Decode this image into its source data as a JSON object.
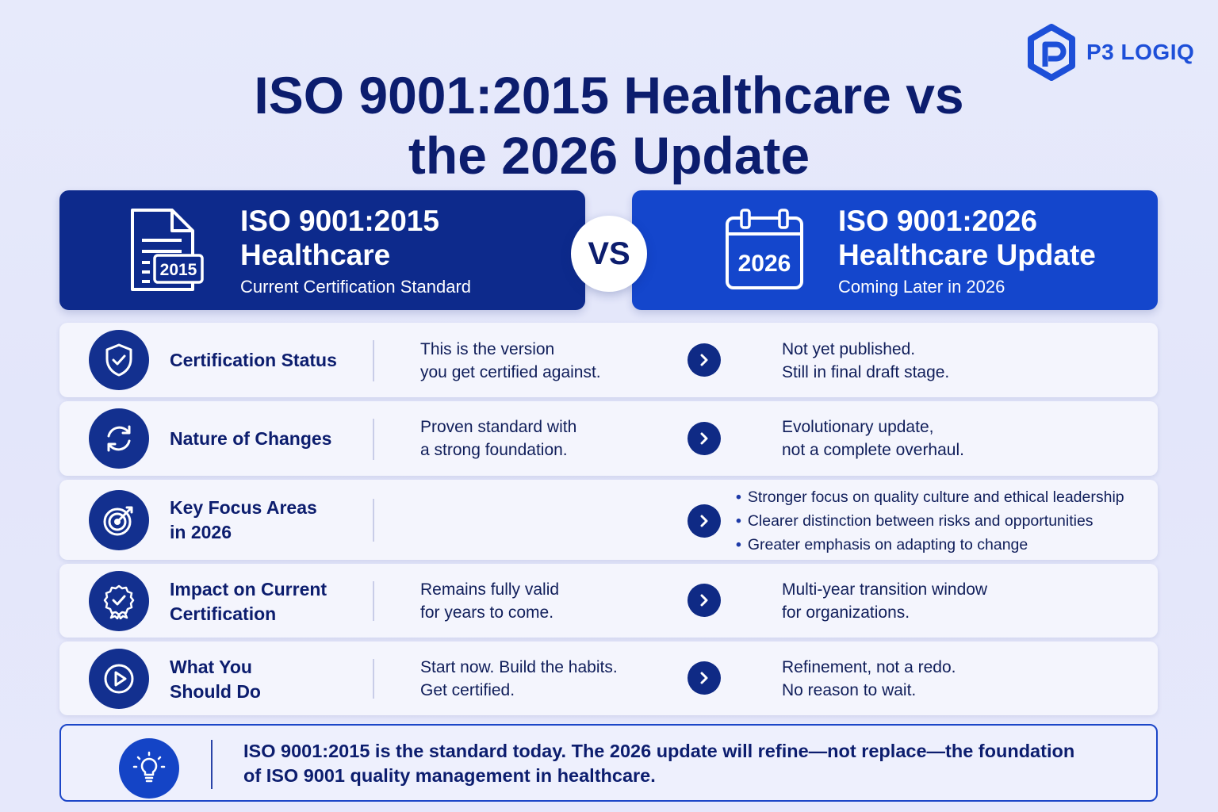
{
  "brand": {
    "name": "P3 LOGIQ"
  },
  "title": {
    "line1": "ISO 9001:2015 Healthcare vs",
    "line2": "the 2026 Update"
  },
  "left_header": {
    "title_line1": "ISO 9001:2015",
    "title_line2": "Healthcare",
    "subtitle": "Current Certification Standard",
    "icon_label": "2015"
  },
  "right_header": {
    "title_line1": "ISO 9001:2026",
    "title_line2": "Healthcare Update",
    "subtitle": "Coming Later in 2026",
    "icon_label": "2026"
  },
  "vs_label": "VS",
  "rows": [
    {
      "label_line1": "Certification Status",
      "label_line2": "",
      "icon": "shield-check-icon",
      "left_line1": "This is the version",
      "left_line2": "you get certified against.",
      "right_line1": "Not yet published.",
      "right_line2": "Still in final draft stage."
    },
    {
      "label_line1": "Nature of Changes",
      "label_line2": "",
      "icon": "refresh-icon",
      "left_line1": "Proven standard with",
      "left_line2": "a strong foundation.",
      "right_line1": "Evolutionary update,",
      "right_line2": "not a complete overhaul."
    },
    {
      "label_line1": "Key Focus Areas",
      "label_line2": "in 2026",
      "icon": "target-icon",
      "bullets": [
        "Stronger focus on quality culture and ethical leadership",
        "Clearer distinction between risks and opportunities",
        "Greater emphasis on adapting to change"
      ]
    },
    {
      "label_line1": "Impact on Current",
      "label_line2": "Certification",
      "icon": "award-badge-icon",
      "left_line1": "Remains fully valid",
      "left_line2": "for years to come.",
      "right_line1": "Multi-year transition window",
      "right_line2": "for organizations."
    },
    {
      "label_line1": "What You",
      "label_line2": "Should Do",
      "icon": "play-icon",
      "left_line1": "Start now. Build the habits.",
      "left_line2": "Get certified.",
      "right_line1": "Refinement, not a redo.",
      "right_line2": "No reason to wait."
    }
  ],
  "footer": {
    "icon": "lightbulb-icon",
    "line1": "ISO 9001:2015 is the standard today. The 2026 update will refine—not replace—the foundation",
    "line2": "of ISO 9001 quality management in healthcare."
  }
}
